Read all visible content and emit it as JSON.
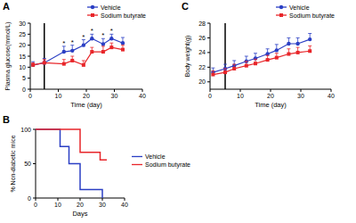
{
  "chart_data": [
    {
      "type": "line",
      "label": "A",
      "x_label": "Time (day)",
      "y_label": "Plasma glucose(mmol/L)",
      "x": [
        1,
        5,
        12,
        15,
        19,
        22,
        26,
        29,
        33
      ],
      "series": [
        {
          "name": "Vehicle",
          "color": "#2b3fc4",
          "marker": "circle",
          "values": [
            11,
            12,
            17,
            17.5,
            20,
            23,
            20.5,
            23,
            21
          ],
          "errors": [
            1.5,
            2,
            2.5,
            2.5,
            2.5,
            2,
            2.5,
            2,
            2.5
          ]
        },
        {
          "name": "Sodium butyrate",
          "color": "#e8262a",
          "marker": "square",
          "values": [
            11,
            12,
            11.5,
            13,
            11,
            17,
            17,
            19,
            18
          ],
          "errors": [
            1,
            1.5,
            2,
            2,
            2,
            2,
            2.5,
            2,
            2
          ]
        }
      ],
      "xlim": [
        0,
        40
      ],
      "xticks": [
        0,
        10,
        20,
        30,
        40
      ],
      "ylim": [
        0,
        30
      ],
      "yticks": [
        0,
        5,
        10,
        15,
        20,
        25,
        30
      ],
      "reference_line_x": 5,
      "annotations": [
        {
          "text": "*",
          "x": 12
        },
        {
          "text": "*",
          "x": 15
        },
        {
          "text": "*",
          "x": 19
        },
        {
          "text": "*",
          "x": 22
        },
        {
          "text": "*",
          "x": 26
        },
        {
          "text": "*",
          "x": 29
        }
      ],
      "legend": "top-right"
    },
    {
      "type": "line",
      "label": "B",
      "x_label": "Days",
      "y_label": "% Non-diabetic mice",
      "series": [
        {
          "name": "Vehicle",
          "color": "#2b3fc4",
          "line_style": "step",
          "x": [
            0,
            11,
            15,
            20,
            30
          ],
          "values": [
            100,
            75,
            50,
            12.5,
            0
          ]
        },
        {
          "name": "Sodium butyrate",
          "color": "#e8262a",
          "line_style": "step",
          "x": [
            0,
            20,
            29,
            32
          ],
          "values": [
            100,
            66.7,
            55.6,
            55.6
          ]
        }
      ],
      "xlim": [
        0,
        40
      ],
      "xticks": [
        0,
        10,
        20,
        30,
        40
      ],
      "ylim": [
        0,
        100
      ],
      "yticks": [
        0,
        50,
        100
      ],
      "legend": "right"
    },
    {
      "type": "line",
      "label": "C",
      "x_label": "Time (day)",
      "y_label": "Body weight(g)",
      "x": [
        1,
        5,
        8,
        12,
        15,
        19,
        22,
        26,
        29,
        33
      ],
      "series": [
        {
          "name": "Vehicle",
          "color": "#2b3fc4",
          "marker": "circle",
          "values": [
            21.3,
            21.8,
            22.2,
            22.8,
            23.2,
            23.8,
            24.3,
            25.2,
            25.2,
            25.8
          ],
          "errors": [
            0.6,
            0.6,
            0.7,
            0.7,
            0.7,
            0.7,
            0.8,
            0.8,
            0.8,
            0.8
          ]
        },
        {
          "name": "Sodium butyrate",
          "color": "#e8262a",
          "marker": "square",
          "values": [
            21.0,
            21.3,
            21.8,
            22.2,
            22.5,
            23.0,
            23.3,
            23.8,
            24.0,
            24.2
          ],
          "errors": [
            0.5,
            0.5,
            0.6,
            0.6,
            0.6,
            0.6,
            0.6,
            0.7,
            0.7,
            0.7
          ]
        }
      ],
      "xlim": [
        0,
        40
      ],
      "xticks": [
        0,
        10,
        20,
        30,
        40
      ],
      "ylim": [
        19,
        28
      ],
      "yticks": [
        20,
        22,
        24,
        26,
        28
      ],
      "reference_line_x": 5,
      "legend": "top-right"
    }
  ]
}
